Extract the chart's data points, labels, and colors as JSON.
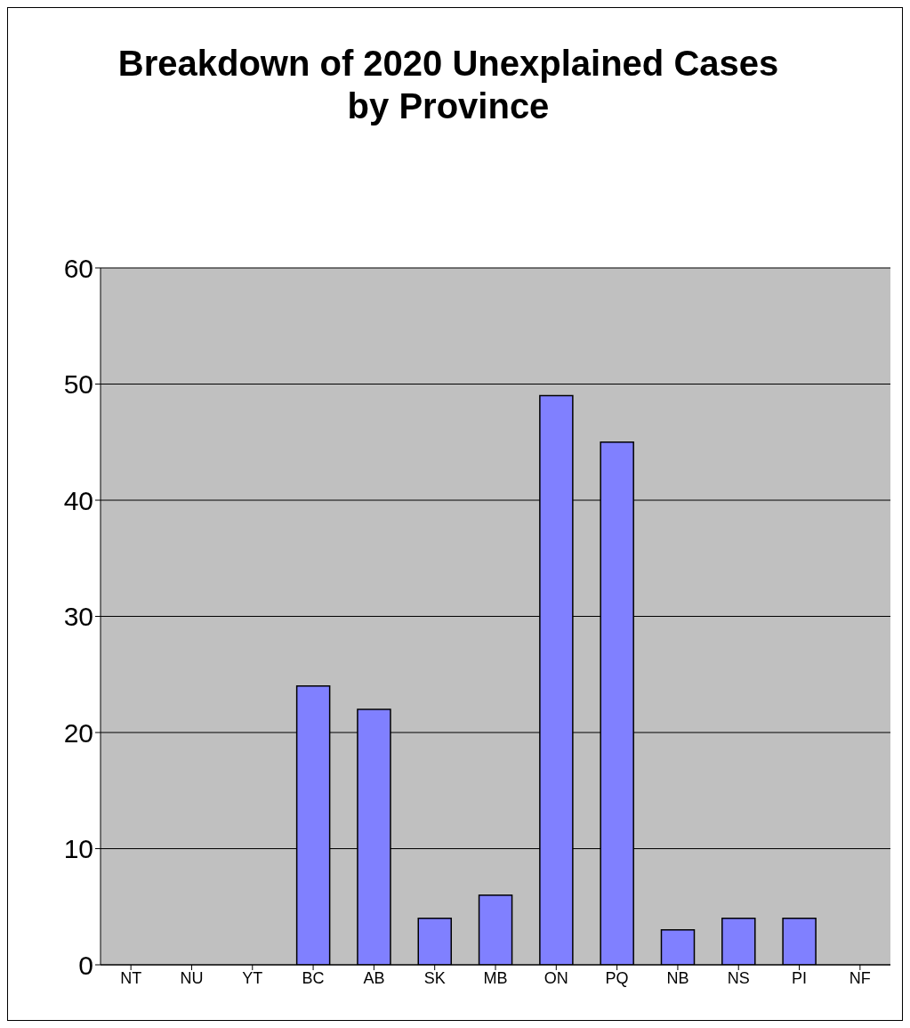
{
  "chart_data": {
    "type": "bar",
    "title": "Breakdown of 2020 Unexplained Cases by Province",
    "categories": [
      "NT",
      "NU",
      "YT",
      "BC",
      "AB",
      "SK",
      "MB",
      "ON",
      "PQ",
      "NB",
      "NS",
      "PI",
      "NF"
    ],
    "values": [
      0,
      0,
      0,
      24,
      22,
      4,
      6,
      49,
      45,
      3,
      4,
      4,
      0
    ],
    "color": "#8080ff",
    "ylim": [
      0,
      60
    ],
    "yticks": [
      0,
      10,
      20,
      30,
      40,
      50,
      60
    ],
    "grid": "y"
  }
}
